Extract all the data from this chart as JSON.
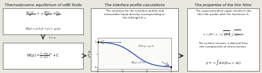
{
  "panel1_title": "Thermodynamic equilibrium of vdW fluids",
  "panel2_title": "The interface profile calculations",
  "panel3_title": "The properties of the thin films",
  "panel2_text": "The solutions for the interface profile and\nmetastable liquid density corresponding to\nthe left/right b.c.",
  "panel3_text1": "The supersaturated vapor results in the\nthin film profile with the thickness H.",
  "panel3_text2": "The surface tension is defined from\nthe components of stress-tensor:",
  "bg_color": "#e8e8e0",
  "box_color": "#ffffff",
  "border_color": "#555555",
  "title_color": "#111111",
  "text_color": "#222222",
  "arrow_color": "#111111",
  "curve_color": "#2244bb"
}
